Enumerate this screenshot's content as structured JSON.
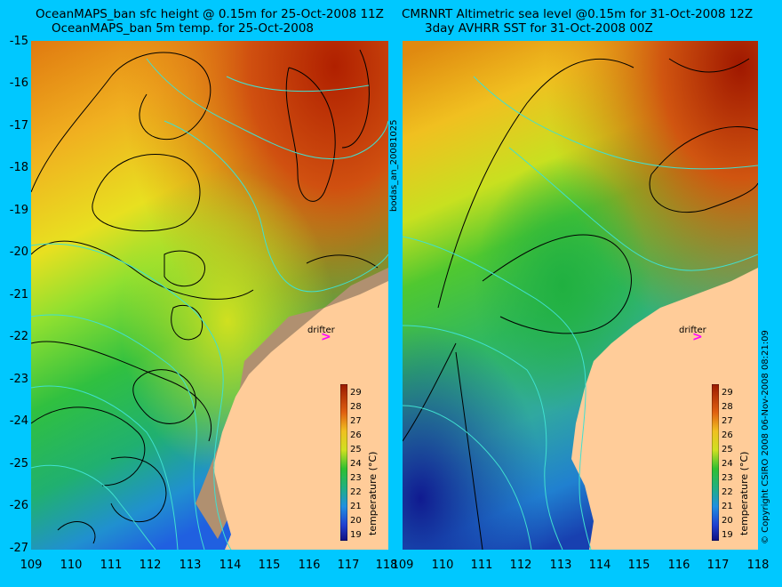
{
  "titles": {
    "left_line1": "OceanMAPS_ban sfc height @ 0.15m for 25-Oct-2008 11Z",
    "left_line2": "OceanMAPS_ban 5m temp. for 25-Oct-2008",
    "right_line1": "CMRNRT Altimetric sea level  @0.15m  for 31-Oct-2008 12Z",
    "right_line2": "3day AVHRR SST for 31-Oct-2008 00Z"
  },
  "y_ticks": [
    "-15",
    "-16",
    "-17",
    "-18",
    "-19",
    "-20",
    "-21",
    "-22",
    "-23",
    "-24",
    "-25",
    "-26",
    "-27"
  ],
  "x_ticks": [
    "109",
    "110",
    "111",
    "112",
    "113",
    "114",
    "115",
    "116",
    "117",
    "118"
  ],
  "side_label": "bodas_an_20081025",
  "copyright": "© Copyright CSIRO 2008   06-Nov-2008 08:21:09",
  "drifter_label": "drifter",
  "colorbar": {
    "title": "temperature (°C)",
    "values": [
      "29",
      "28",
      "27",
      "26",
      "25",
      "24",
      "23",
      "22",
      "21",
      "20",
      "19"
    ]
  },
  "colors": {
    "background": "#00c8ff",
    "land": "#ffcc99",
    "coast_contour": "#40e0d0",
    "drifter": "#ff00ff"
  }
}
